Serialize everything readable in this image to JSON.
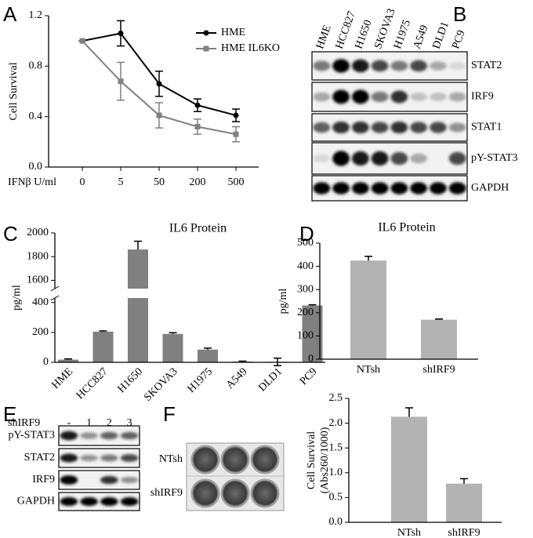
{
  "chart_data": [
    {
      "panel": "A",
      "type": "line",
      "ylabel": "Cell Survival",
      "xlabel": "IFNβ U/ml",
      "categories": [
        "0",
        "5",
        "50",
        "200",
        "500"
      ],
      "series": [
        {
          "name": "HME",
          "color": "#000000",
          "values": [
            1.0,
            1.06,
            0.66,
            0.49,
            0.41
          ],
          "errors": [
            0,
            0.1,
            0.1,
            0.05,
            0.05
          ]
        },
        {
          "name": "HME IL6KO",
          "color": "#808080",
          "values": [
            1.0,
            0.68,
            0.41,
            0.32,
            0.26
          ],
          "errors": [
            0,
            0.15,
            0.1,
            0.06,
            0.06
          ]
        }
      ],
      "ylim": [
        0,
        1.2
      ],
      "yticks": [
        {
          "value": 0,
          "label": "0.0"
        },
        {
          "value": 0.4,
          "label": "0.4"
        },
        {
          "value": 0.8,
          "label": "0.8"
        },
        {
          "value": 1.2,
          "label": "1.2"
        }
      ]
    },
    {
      "panel": "C",
      "type": "bar",
      "title": "IL6 Protein",
      "ylabel": "pg/ml",
      "categories": [
        "HME",
        "HCC827",
        "H1650",
        "SKOVA3",
        "H1975",
        "A549",
        "DLD1",
        "PC9"
      ],
      "values": [
        18,
        205,
        1860,
        190,
        85,
        5,
        3,
        380
      ],
      "errors": [
        5,
        5,
        70,
        8,
        10,
        3,
        25,
        5
      ],
      "color": "#808080",
      "ylim": [
        0,
        2000
      ],
      "ybreak": [
        430,
        1530
      ],
      "yticks": [
        0,
        200,
        400,
        1600,
        1800,
        2000
      ]
    },
    {
      "panel": "D",
      "type": "bar",
      "title": "IL6 Protein",
      "ylabel": "pg/ml",
      "categories": [
        "NTsh",
        "shIRF9"
      ],
      "values": [
        425,
        170
      ],
      "errors": [
        18,
        3
      ],
      "color": "#b3b3b3",
      "ylim": [
        0,
        500
      ],
      "yticks": [
        0,
        100,
        200,
        300,
        400,
        500
      ]
    },
    {
      "type": "bar",
      "ylabel": [
        "Cell Survival",
        "(Abs260/1000)"
      ],
      "categories": [
        "NTsh",
        "shIRF9"
      ],
      "values": [
        2.13,
        0.78
      ],
      "errors": [
        0.18,
        0.1
      ],
      "color": "#b3b3b3",
      "ylim": [
        0,
        2.5
      ],
      "yticks": [
        {
          "value": 0,
          "label": "0.0"
        },
        0.5,
        {
          "value": 1,
          "label": "1.0"
        },
        1.5,
        {
          "value": 2,
          "label": "2.0"
        },
        2.5
      ]
    }
  ],
  "blots": [
    {
      "panel": "B",
      "lanes": [
        "HME",
        "HCC827",
        "H1650",
        "SKOVA3",
        "H1975",
        "A549",
        "DLD1",
        "PC9"
      ],
      "rows": [
        "STAT2",
        "IRF9",
        "STAT1",
        "pY-STAT3",
        "GAPDH"
      ]
    },
    {
      "panel": "E",
      "header": "shIRF9",
      "lanes": [
        "-",
        "1",
        "2",
        "3"
      ],
      "rows": [
        "pY-STAT3",
        "STAT2",
        "IRF9",
        "GAPDH"
      ]
    }
  ],
  "wells": {
    "panel": "F",
    "rows": [
      "NTsh",
      "shIRF9"
    ]
  }
}
